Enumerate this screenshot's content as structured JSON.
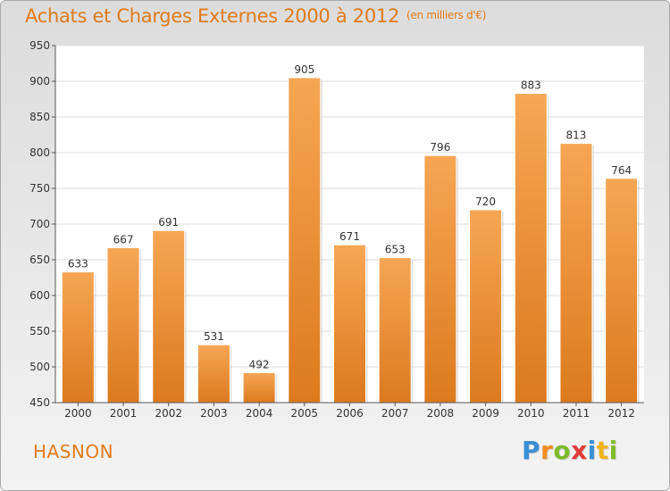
{
  "title": "Achats et Charges Externes 2000 à 2012",
  "subtitle": "(en milliers d'€)",
  "commune": "HASNON",
  "logo": {
    "letters": [
      "P",
      "r",
      "o",
      "x",
      "i",
      "t",
      "i"
    ],
    "colors": [
      "#3a8fd6",
      "#f28c1e",
      "#7dbb2a",
      "#e23b3b",
      "#3a8fd6",
      "#f2b21e",
      "#7dbb2a"
    ]
  },
  "colors": {
    "bar_light": "#f6a654",
    "bar_dark": "#dc7a1e",
    "title": "#e07b1a"
  },
  "chart_data": {
    "type": "bar",
    "categories": [
      "2000",
      "2001",
      "2002",
      "2003",
      "2004",
      "2005",
      "2006",
      "2007",
      "2008",
      "2009",
      "2010",
      "2011",
      "2012"
    ],
    "values": [
      633,
      667,
      691,
      531,
      492,
      905,
      671,
      653,
      796,
      720,
      883,
      813,
      764
    ],
    "ylim": [
      450,
      950
    ],
    "yticks": [
      450,
      500,
      550,
      600,
      650,
      700,
      750,
      800,
      850,
      900,
      950
    ],
    "grid": true,
    "data_labels": true
  }
}
